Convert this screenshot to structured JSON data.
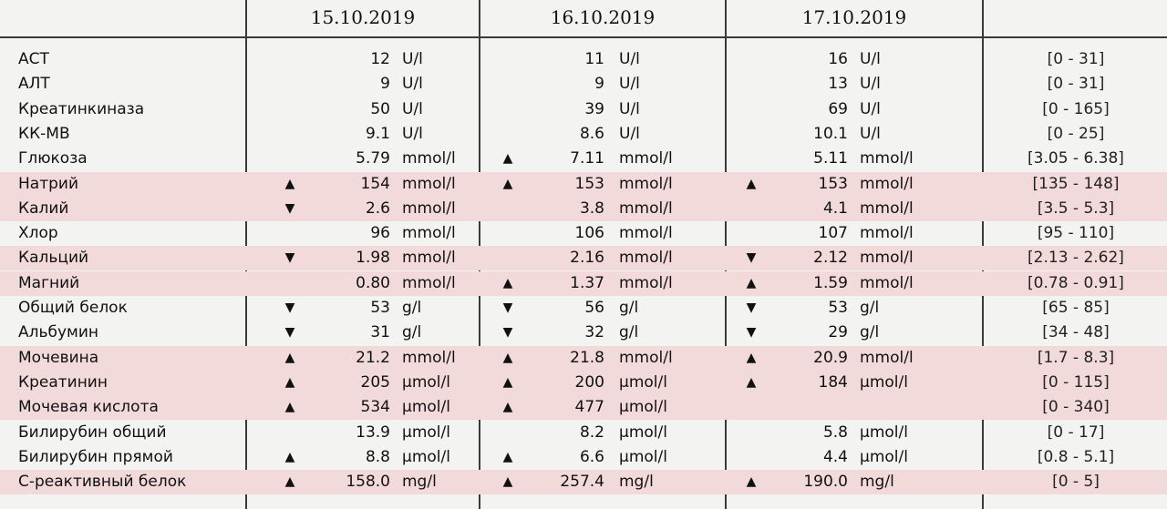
{
  "header": {
    "dates": [
      "15.10.2019",
      "16.10.2019",
      "17.10.2019"
    ]
  },
  "rows": [
    {
      "name": "АСТ",
      "hl": false,
      "cells": [
        {
          "arrow": "",
          "value": "12",
          "unit": "U/l"
        },
        {
          "arrow": "",
          "value": "11",
          "unit": "U/l"
        },
        {
          "arrow": "",
          "value": "16",
          "unit": "U/l"
        }
      ],
      "ref": "[0 - 31]"
    },
    {
      "name": "АЛТ",
      "hl": false,
      "cells": [
        {
          "arrow": "",
          "value": "9",
          "unit": "U/l"
        },
        {
          "arrow": "",
          "value": "9",
          "unit": "U/l"
        },
        {
          "arrow": "",
          "value": "13",
          "unit": "U/l"
        }
      ],
      "ref": "[0 - 31]"
    },
    {
      "name": "Креатинкиназа",
      "hl": false,
      "cells": [
        {
          "arrow": "",
          "value": "50",
          "unit": "U/l"
        },
        {
          "arrow": "",
          "value": "39",
          "unit": "U/l"
        },
        {
          "arrow": "",
          "value": "69",
          "unit": "U/l"
        }
      ],
      "ref": "[0 - 165]"
    },
    {
      "name": "КК-МВ",
      "hl": false,
      "cells": [
        {
          "arrow": "",
          "value": "9.1",
          "unit": "U/l"
        },
        {
          "arrow": "",
          "value": "8.6",
          "unit": "U/l"
        },
        {
          "arrow": "",
          "value": "10.1",
          "unit": "U/l"
        }
      ],
      "ref": "[0 - 25]"
    },
    {
      "name": "Глюкоза",
      "hl": false,
      "cells": [
        {
          "arrow": "",
          "value": "5.79",
          "unit": "mmol/l"
        },
        {
          "arrow": "up",
          "value": "7.11",
          "unit": "mmol/l"
        },
        {
          "arrow": "",
          "value": "5.11",
          "unit": "mmol/l"
        }
      ],
      "ref": "[3.05 - 6.38]"
    },
    {
      "name": "Натрий",
      "hl": true,
      "cells": [
        {
          "arrow": "up",
          "value": "154",
          "unit": "mmol/l"
        },
        {
          "arrow": "up",
          "value": "153",
          "unit": "mmol/l"
        },
        {
          "arrow": "up",
          "value": "153",
          "unit": "mmol/l"
        }
      ],
      "ref": "[135 - 148]"
    },
    {
      "name": "Калий",
      "hl": true,
      "cells": [
        {
          "arrow": "down",
          "value": "2.6",
          "unit": "mmol/l"
        },
        {
          "arrow": "",
          "value": "3.8",
          "unit": "mmol/l"
        },
        {
          "arrow": "",
          "value": "4.1",
          "unit": "mmol/l"
        }
      ],
      "ref": "[3.5 - 5.3]"
    },
    {
      "name": "Хлор",
      "hl": false,
      "cells": [
        {
          "arrow": "",
          "value": "96",
          "unit": "mmol/l"
        },
        {
          "arrow": "",
          "value": "106",
          "unit": "mmol/l"
        },
        {
          "arrow": "",
          "value": "107",
          "unit": "mmol/l"
        }
      ],
      "ref": "[95 - 110]"
    },
    {
      "name": "Кальций",
      "hl": true,
      "cells": [
        {
          "arrow": "down",
          "value": "1.98",
          "unit": "mmol/l"
        },
        {
          "arrow": "",
          "value": "2.16",
          "unit": "mmol/l"
        },
        {
          "arrow": "down",
          "value": "2.12",
          "unit": "mmol/l"
        }
      ],
      "ref": "[2.13 - 2.62]"
    },
    {
      "name": "Магний",
      "hl": true,
      "cells": [
        {
          "arrow": "",
          "value": "0.80",
          "unit": "mmol/l"
        },
        {
          "arrow": "up",
          "value": "1.37",
          "unit": "mmol/l"
        },
        {
          "arrow": "up",
          "value": "1.59",
          "unit": "mmol/l"
        }
      ],
      "ref": "[0.78 - 0.91]"
    },
    {
      "name": "Общий белок",
      "hl": false,
      "cells": [
        {
          "arrow": "down",
          "value": "53",
          "unit": "g/l"
        },
        {
          "arrow": "down",
          "value": "56",
          "unit": "g/l"
        },
        {
          "arrow": "down",
          "value": "53",
          "unit": "g/l"
        }
      ],
      "ref": "[65 - 85]"
    },
    {
      "name": "Альбумин",
      "hl": false,
      "cells": [
        {
          "arrow": "down",
          "value": "31",
          "unit": "g/l"
        },
        {
          "arrow": "down",
          "value": "32",
          "unit": "g/l"
        },
        {
          "arrow": "down",
          "value": "29",
          "unit": "g/l"
        }
      ],
      "ref": "[34 - 48]"
    },
    {
      "name": "Мочевина",
      "hl": true,
      "cells": [
        {
          "arrow": "up",
          "value": "21.2",
          "unit": "mmol/l"
        },
        {
          "arrow": "up",
          "value": "21.8",
          "unit": "mmol/l"
        },
        {
          "arrow": "up",
          "value": "20.9",
          "unit": "mmol/l"
        }
      ],
      "ref": "[1.7 - 8.3]"
    },
    {
      "name": "Креатинин",
      "hl": true,
      "cells": [
        {
          "arrow": "up",
          "value": "205",
          "unit": "μmol/l"
        },
        {
          "arrow": "up",
          "value": "200",
          "unit": "μmol/l"
        },
        {
          "arrow": "up",
          "value": "184",
          "unit": "μmol/l"
        }
      ],
      "ref": "[0 - 115]"
    },
    {
      "name": "Мочевая кислота",
      "hl": true,
      "cells": [
        {
          "arrow": "up",
          "value": "534",
          "unit": "μmol/l"
        },
        {
          "arrow": "up",
          "value": "477",
          "unit": "μmol/l"
        },
        {
          "arrow": "",
          "value": "",
          "unit": ""
        }
      ],
      "ref": "[0 - 340]"
    },
    {
      "name": "Билирубин общий",
      "hl": false,
      "cells": [
        {
          "arrow": "",
          "value": "13.9",
          "unit": "μmol/l"
        },
        {
          "arrow": "",
          "value": "8.2",
          "unit": "μmol/l"
        },
        {
          "arrow": "",
          "value": "5.8",
          "unit": "μmol/l"
        }
      ],
      "ref": "[0 - 17]"
    },
    {
      "name": "Билирубин прямой",
      "hl": false,
      "cells": [
        {
          "arrow": "up",
          "value": "8.8",
          "unit": "μmol/l"
        },
        {
          "arrow": "up",
          "value": "6.6",
          "unit": "μmol/l"
        },
        {
          "arrow": "",
          "value": "4.4",
          "unit": "μmol/l"
        }
      ],
      "ref": "[0.8 - 5.1]"
    },
    {
      "name": "С-реактивный белок",
      "hl": true,
      "cells": [
        {
          "arrow": "up",
          "value": "158.0",
          "unit": "mg/l"
        },
        {
          "arrow": "up",
          "value": "257.4",
          "unit": "mg/l"
        },
        {
          "arrow": "up",
          "value": "190.0",
          "unit": "mg/l"
        }
      ],
      "ref": "[0 - 5]"
    }
  ],
  "colors": {
    "highlight": "#f3dada",
    "grid": "#3a3a3a",
    "background": "#f3f3f1"
  },
  "icons": {
    "up": "triangle-up-icon",
    "down": "triangle-down-icon"
  }
}
